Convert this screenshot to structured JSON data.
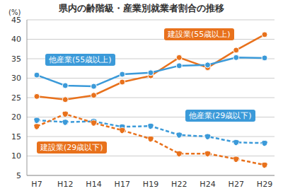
{
  "chart_data": {
    "type": "line",
    "title": "県内の齢階級・産業別就業者割合の推移",
    "y_label": "(%)",
    "categories": [
      "H7",
      "H12",
      "H14",
      "H17",
      "H19",
      "H22",
      "H24",
      "H27",
      "H29"
    ],
    "series": [
      {
        "name": "建設業(55歳以上)",
        "color": "#e8711c",
        "line_style": "solid",
        "marker": "circle",
        "values": [
          25.3,
          24.5,
          25.6,
          29.0,
          30.6,
          35.3,
          32.7,
          37.2,
          41.2
        ]
      },
      {
        "name": "他産業(55歳以上)",
        "color": "#3b9ad9",
        "line_style": "solid",
        "marker": "circle",
        "values": [
          30.8,
          28.1,
          27.9,
          31.0,
          31.4,
          33.2,
          33.4,
          35.3,
          35.2
        ]
      },
      {
        "name": "他産業(29歳以下)",
        "color": "#3b9ad9",
        "line_style": "dashed",
        "marker": "circle",
        "values": [
          19.2,
          18.7,
          18.9,
          17.5,
          17.7,
          15.4,
          15.0,
          13.5,
          13.3
        ]
      },
      {
        "name": "建設業(29歳以下)",
        "color": "#e8711c",
        "line_style": "dashed",
        "marker": "circle",
        "values": [
          17.6,
          20.8,
          18.5,
          16.6,
          14.4,
          10.6,
          10.6,
          9.2,
          7.7
        ]
      }
    ],
    "ylim": [
      5,
      45
    ],
    "yticks": [
      5,
      10,
      15,
      20,
      25,
      30,
      35,
      40,
      45
    ],
    "grid": true
  }
}
